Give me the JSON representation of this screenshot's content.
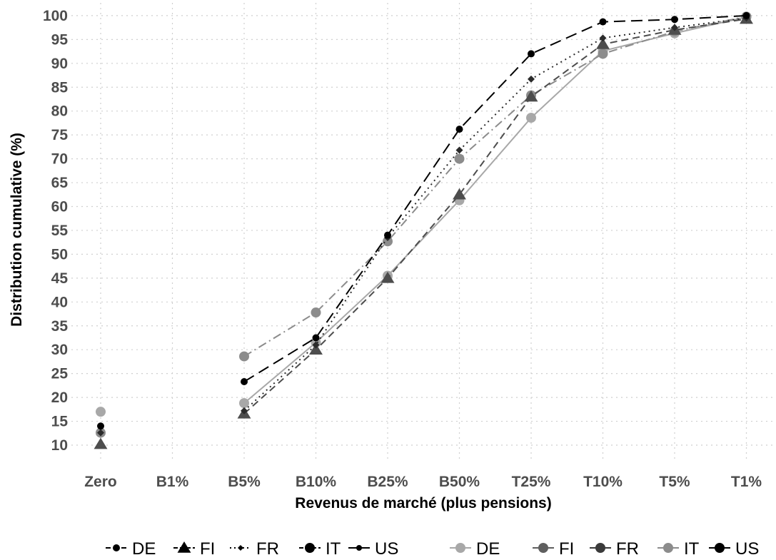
{
  "chart_data": {
    "type": "line",
    "title": "",
    "xlabel": "Revenus de marché (plus pensions)",
    "ylabel": "Distribution cumulative (%)",
    "categories": [
      "Zero",
      "B1%",
      "B5%",
      "B10%",
      "B25%",
      "B50%",
      "T25%",
      "T10%",
      "T5%",
      "T1%"
    ],
    "yticks": [
      10,
      15,
      20,
      25,
      30,
      35,
      40,
      45,
      50,
      55,
      60,
      65,
      70,
      75,
      80,
      85,
      90,
      95,
      100
    ],
    "ylim": [
      5.5,
      101.5
    ],
    "grid": true,
    "legend_position": "bottom",
    "series": [
      {
        "name": "DE",
        "group": 1,
        "color": "#000000",
        "marker": "circle",
        "dash": "dash-long",
        "values": [
          14,
          null,
          23.3,
          32.5,
          54,
          76.2,
          92,
          98.7,
          99.2,
          100
        ]
      },
      {
        "name": "FI",
        "group": 1,
        "color": "#4d4d4d",
        "marker": "triangle",
        "dash": "dash-mid",
        "values": [
          10.2,
          null,
          16.6,
          30,
          45,
          62.5,
          83,
          94,
          97,
          99.3
        ]
      },
      {
        "name": "FR",
        "group": 1,
        "color": "#2b2b2b",
        "marker": "diamond",
        "dash": "dot",
        "values": [
          12.6,
          null,
          17.2,
          31,
          53.5,
          71.8,
          86.7,
          95.3,
          97.5,
          99.5
        ]
      },
      {
        "name": "IT",
        "group": 1,
        "color": "#8c8c8c",
        "marker": "circle",
        "dash": "dash-dot",
        "values": [
          12.6,
          null,
          28.6,
          37.8,
          52.7,
          70,
          83.3,
          92,
          96.7,
          99.8
        ]
      },
      {
        "name": "US",
        "group": 1,
        "color": "#a8a8a8",
        "marker": "circle",
        "dash": "solid",
        "values": [
          17,
          null,
          18.8,
          31.5,
          45.5,
          61.3,
          78.6,
          92.6,
          96.3,
          99.7
        ]
      }
    ],
    "legend": [
      {
        "label": "DE",
        "style": "dash-long",
        "marker": "circle",
        "color": "#000000"
      },
      {
        "label": "FI",
        "style": "dash-mid",
        "marker": "triangle",
        "color": "#000000"
      },
      {
        "label": "FR",
        "style": "dot",
        "marker": "diamond-small",
        "color": "#000000"
      },
      {
        "label": "IT",
        "style": "dash-dot",
        "marker": "circle-large",
        "color": "#000000"
      },
      {
        "label": "US",
        "style": "solid",
        "marker": "circle-small",
        "color": "#000000"
      },
      {
        "label": "DE",
        "style": "solid",
        "marker": "circle-large",
        "color": "#a8a8a8"
      },
      {
        "label": "FI",
        "style": "solid",
        "marker": "circle-large",
        "color": "#5f5f5f"
      },
      {
        "label": "FR",
        "style": "solid",
        "marker": "circle-large",
        "color": "#3a3a3a"
      },
      {
        "label": "IT",
        "style": "solid",
        "marker": "circle-large",
        "color": "#8c8c8c"
      },
      {
        "label": "US",
        "style": "solid",
        "marker": "circle-large",
        "color": "#000000"
      }
    ]
  }
}
